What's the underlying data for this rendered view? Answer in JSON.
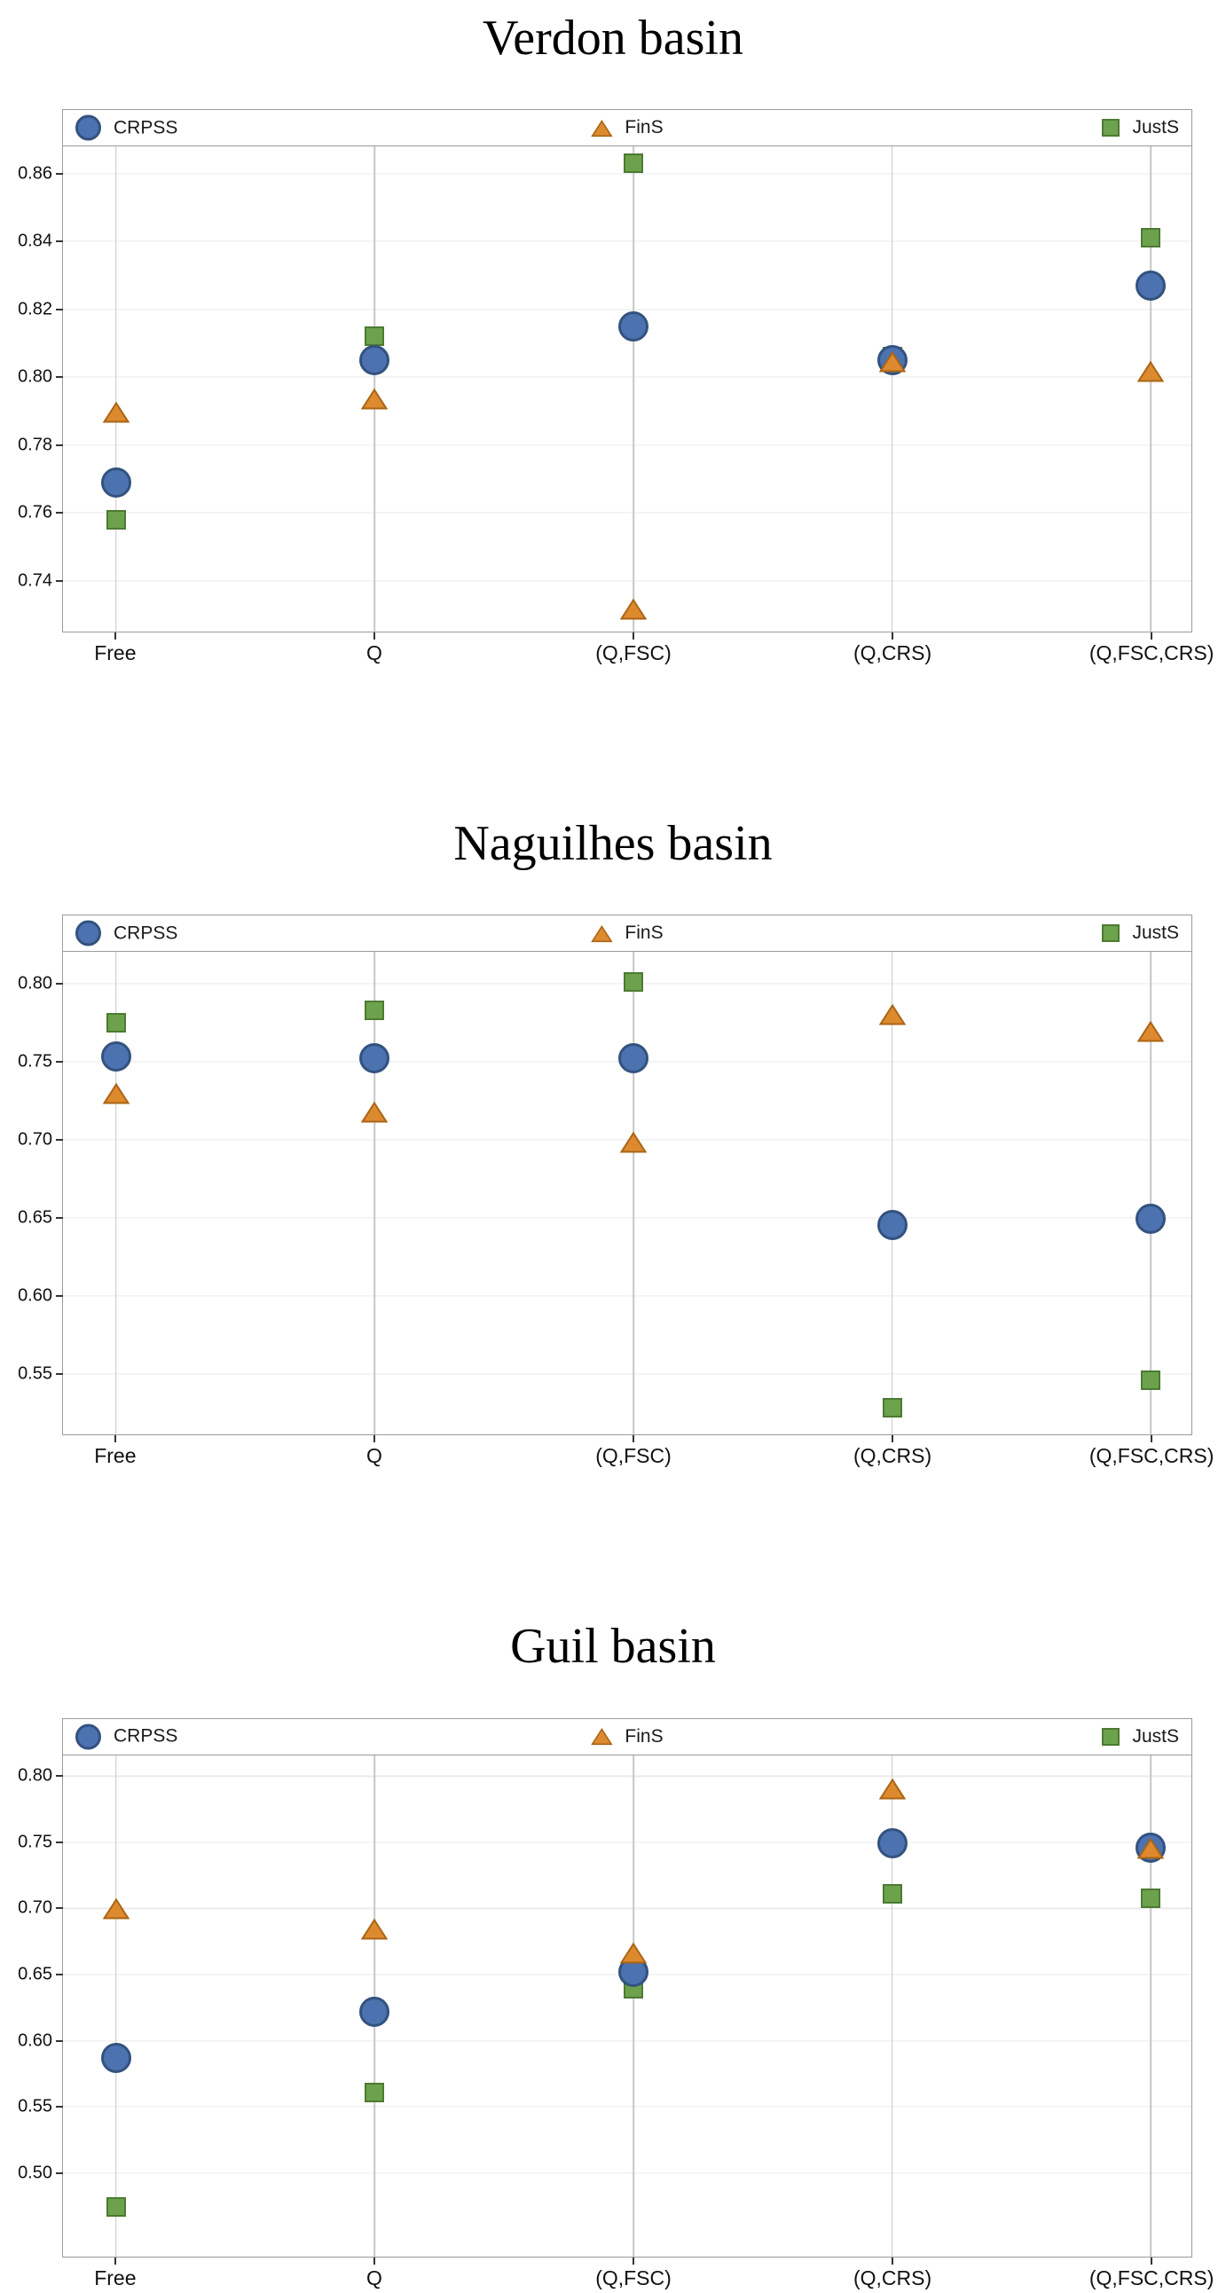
{
  "page": {
    "background": "#ffffff"
  },
  "colors": {
    "crpss_fill": "#4c72b0",
    "crpss_edge": "#33527f",
    "fins_fill": "#dd8a2f",
    "fins_edge": "#aa6414",
    "justs_fill": "#6da24c",
    "justs_edge": "#4c7a33",
    "gridline_vertical": "#c6c6c6",
    "gridline_horizontal": "#ebebeb",
    "axis_border": "#9b9b9b"
  },
  "legend": {
    "position": "top",
    "items": [
      {
        "label": "CRPSS",
        "marker": "circle-icon"
      },
      {
        "label": "FinS",
        "marker": "triangle-icon"
      },
      {
        "label": "JustS",
        "marker": "square-icon"
      }
    ]
  },
  "chart_data": [
    {
      "type": "scatter",
      "title": "Verdon basin",
      "categories": [
        "Free",
        "Q",
        "(Q,FSC)",
        "(Q,CRS)",
        "(Q,FSC,CRS)"
      ],
      "series": [
        {
          "name": "CRPSS",
          "marker": "circle",
          "color": "#4c72b0",
          "edge": "#33527f",
          "values": [
            0.769,
            0.805,
            0.815,
            0.805,
            0.827
          ]
        },
        {
          "name": "FinS",
          "marker": "triangle",
          "color": "#dd8a2f",
          "edge": "#aa6414",
          "values": [
            0.789,
            0.793,
            0.731,
            0.804,
            0.801
          ]
        },
        {
          "name": "JustS",
          "marker": "square",
          "color": "#6da24c",
          "edge": "#4c7a33",
          "values": [
            0.758,
            0.812,
            0.863,
            0.806,
            0.841
          ]
        }
      ],
      "xlabel": "",
      "ylabel": "",
      "ylim": [
        0.725,
        0.868
      ],
      "yticks": [
        0.74,
        0.76,
        0.78,
        0.8,
        0.82,
        0.84,
        0.86
      ],
      "grid": true,
      "legend_position": "top"
    },
    {
      "type": "scatter",
      "title": "Naguilhes basin",
      "categories": [
        "Free",
        "Q",
        "(Q,FSC)",
        "(Q,CRS)",
        "(Q,FSC,CRS)"
      ],
      "series": [
        {
          "name": "CRPSS",
          "marker": "circle",
          "color": "#4c72b0",
          "edge": "#33527f",
          "values": [
            0.753,
            0.752,
            0.752,
            0.645,
            0.649
          ]
        },
        {
          "name": "FinS",
          "marker": "triangle",
          "color": "#dd8a2f",
          "edge": "#aa6414",
          "values": [
            0.728,
            0.716,
            0.697,
            0.779,
            0.768
          ]
        },
        {
          "name": "JustS",
          "marker": "square",
          "color": "#6da24c",
          "edge": "#4c7a33",
          "values": [
            0.775,
            0.783,
            0.801,
            0.528,
            0.546
          ]
        }
      ],
      "xlabel": "",
      "ylabel": "",
      "ylim": [
        0.511,
        0.82
      ],
      "yticks": [
        0.55,
        0.6,
        0.65,
        0.7,
        0.75,
        0.8
      ],
      "grid": true,
      "legend_position": "top"
    },
    {
      "type": "scatter",
      "title": "Guil basin",
      "categories": [
        "Free",
        "Q",
        "(Q,FSC)",
        "(Q,CRS)",
        "(Q,FSC,CRS)"
      ],
      "series": [
        {
          "name": "CRPSS",
          "marker": "circle",
          "color": "#4c72b0",
          "edge": "#33527f",
          "values": [
            0.587,
            0.622,
            0.652,
            0.749,
            0.746
          ]
        },
        {
          "name": "FinS",
          "marker": "triangle",
          "color": "#dd8a2f",
          "edge": "#aa6414",
          "values": [
            0.698,
            0.683,
            0.665,
            0.789,
            0.744
          ]
        },
        {
          "name": "JustS",
          "marker": "square",
          "color": "#6da24c",
          "edge": "#4c7a33",
          "values": [
            0.474,
            0.561,
            0.639,
            0.711,
            0.708
          ]
        }
      ],
      "xlabel": "",
      "ylabel": "",
      "ylim": [
        0.437,
        0.816
      ],
      "yticks": [
        0.5,
        0.55,
        0.6,
        0.65,
        0.7,
        0.75,
        0.8
      ],
      "grid": true,
      "legend_position": "top"
    }
  ]
}
